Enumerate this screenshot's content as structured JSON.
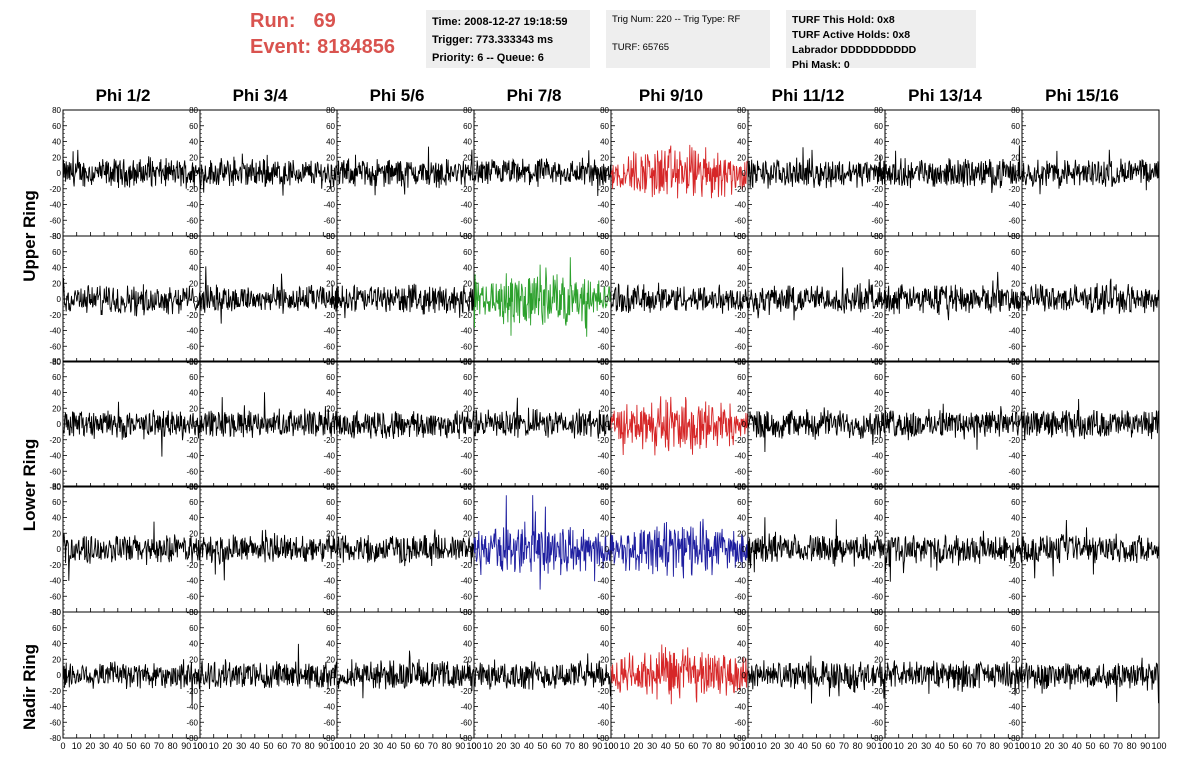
{
  "header": {
    "run_label": "Run:",
    "run_value": "69",
    "event_label": "Event:",
    "event_value": "8184856",
    "accent_color": "#d9534f"
  },
  "info_boxes": {
    "time": "Time: 2008-12-27 19:18:59",
    "trigger": "Trigger: 773.333343 ms",
    "priority": "Priority: 6 -- Queue: 6",
    "trig_num": "Trig Num: 220 -- Trig Type: RF",
    "turf": "TURF: 65765",
    "turf_this_hold": "TURF This Hold: 0x8",
    "turf_active_holds": "TURF Active Holds: 0x8",
    "labrador": "Labrador DDDDDDDDDD",
    "phi_mask": "Phi Mask: 0"
  },
  "column_titles": [
    "Phi 1/2",
    "Phi 3/4",
    "Phi 5/6",
    "Phi 7/8",
    "Phi 9/10",
    "Phi 11/12",
    "Phi 13/14",
    "Phi 15/16"
  ],
  "row_titles": [
    "Upper Ring",
    "Lower Ring",
    "Nadir Ring"
  ],
  "chart_data": {
    "type": "line",
    "panel_grid": {
      "rows": 5,
      "columns": 8
    },
    "xlim": [
      0,
      100
    ],
    "ylim": [
      -80,
      80
    ],
    "x_ticks": [
      0,
      10,
      20,
      30,
      40,
      50,
      60,
      70,
      80,
      90,
      100
    ],
    "y_ticks": [
      -80,
      -60,
      -40,
      -20,
      0,
      20,
      40,
      60,
      80
    ],
    "y_tick_labels": [
      "-80",
      "-60",
      "-40",
      "-20",
      "0",
      "20",
      "40",
      "60",
      "80"
    ],
    "bottom_axis_labels": [
      "0",
      "10",
      "20",
      "30",
      "40",
      "50",
      "60",
      "70",
      "80",
      "90",
      "100"
    ],
    "default_trace_color": "#000000",
    "highlighted_panels": [
      {
        "row": 0,
        "column": 4,
        "color": "#d62728"
      },
      {
        "row": 1,
        "column": 3,
        "color": "#2ca02c"
      },
      {
        "row": 2,
        "column": 4,
        "color": "#d62728"
      },
      {
        "row": 3,
        "column": 3,
        "color": "#1f1fa0"
      },
      {
        "row": 3,
        "column": 4,
        "color": "#1f1fa0"
      },
      {
        "row": 4,
        "column": 4,
        "color": "#d62728"
      }
    ],
    "trace_amplitude_estimate": {
      "typical": 15,
      "highlighted": 30
    }
  }
}
